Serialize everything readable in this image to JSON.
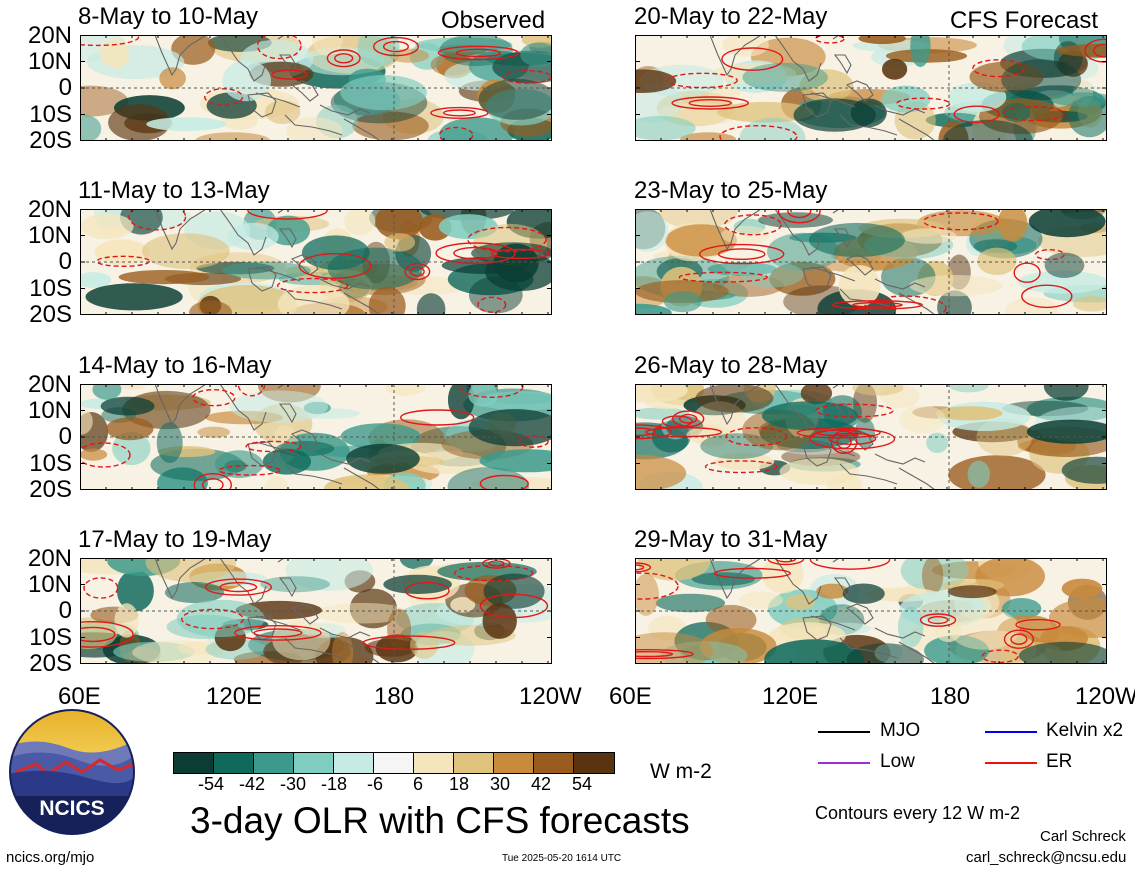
{
  "header": {
    "left_label": "Observed",
    "right_label": "CFS Forecast"
  },
  "panels_left": [
    {
      "title": "8-May to 10-May"
    },
    {
      "title": "11-May to 13-May"
    },
    {
      "title": "14-May to 16-May"
    },
    {
      "title": "17-May to 19-May"
    }
  ],
  "panels_right": [
    {
      "title": "20-May to 22-May"
    },
    {
      "title": "23-May to 25-May"
    },
    {
      "title": "26-May to 28-May"
    },
    {
      "title": "29-May to 31-May"
    }
  ],
  "lat_labels": [
    "20N",
    "10N",
    "0",
    "10S",
    "20S"
  ],
  "lon_labels": [
    "60E",
    "120E",
    "180",
    "120W"
  ],
  "colorbar": {
    "colors": [
      "#0b3d34",
      "#0f6a5c",
      "#3b9a8b",
      "#7fcdbf",
      "#c6ebe4",
      "#f5f5f5",
      "#f5e5bd",
      "#dfc27c",
      "#c98a3c",
      "#9a5c1e",
      "#5a3410"
    ],
    "tick_labels": [
      "-54",
      "-42",
      "-30",
      "-18",
      "-6",
      "6",
      "18",
      "30",
      "42",
      "54"
    ],
    "units": "W m-2"
  },
  "title": "3-day OLR with CFS forecasts",
  "legend": {
    "items": [
      {
        "label": "MJO",
        "color": "#000000"
      },
      {
        "label": "Kelvin x2",
        "color": "#0000ff"
      },
      {
        "label": "Low",
        "color": "#9b30d9"
      },
      {
        "label": "ER",
        "color": "#ee1111"
      }
    ],
    "note": "Contours every 12 W m-2"
  },
  "credits": {
    "logo_text": "NCICS",
    "site": "ncics.org/mjo",
    "timestamp": "Tue 2025-05-20 1614 UTC",
    "author": "Carl Schreck",
    "email": "carl_schreck@ncsu.edu"
  }
}
